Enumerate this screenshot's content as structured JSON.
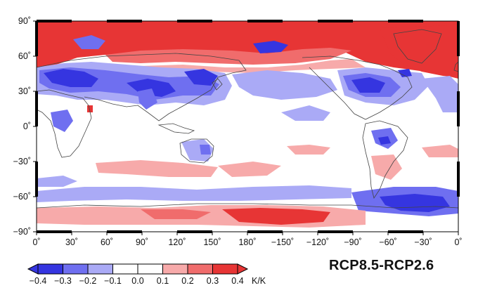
{
  "title": "RCP8.5-RCP2.6",
  "lat_ticks": [
    "90˚",
    "60˚",
    "30˚",
    "0˚",
    "−30˚",
    "−60˚",
    "−90˚"
  ],
  "lon_ticks": [
    "0˚",
    "30˚",
    "60˚",
    "90˚",
    "120˚",
    "150˚",
    "180˚",
    "−150˚",
    "−120˚",
    "−90˚",
    "−60˚",
    "−30˚",
    "0˚"
  ],
  "colorbar": {
    "levels": [
      "−0.4",
      "−0.3",
      "−0.2",
      "−0.1",
      "0.0",
      "0.1",
      "0.2",
      "0.3",
      "0.4"
    ],
    "colors": [
      "#3535e0",
      "#6f6ff0",
      "#aaaaf6",
      "#ffffff",
      "#ffffff",
      "#f7aaaa",
      "#f06c6c",
      "#e73535"
    ],
    "unit": "K/K"
  },
  "map_legend": {
    "variable_unit": "K/K",
    "lat_range": [
      -90,
      90
    ],
    "lon_range": [
      0,
      360
    ],
    "projection": "cylindrical equidistant, centered on 180˚"
  }
}
